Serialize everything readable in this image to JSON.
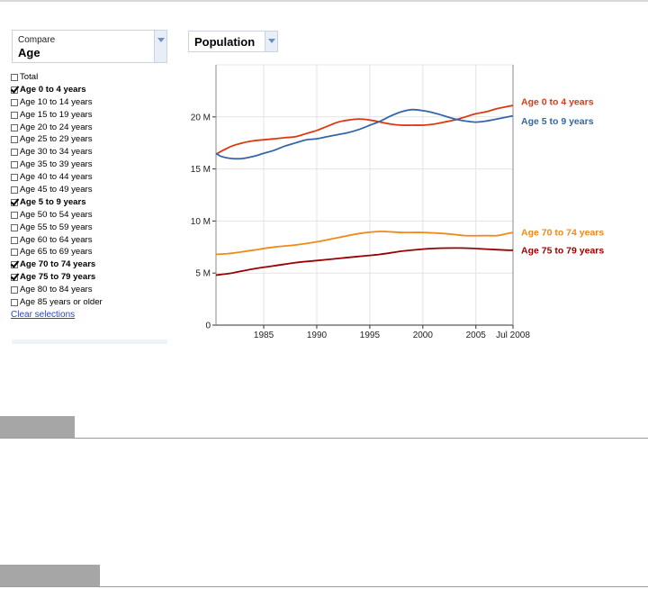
{
  "compare": {
    "caption": "Compare",
    "selected": "Age"
  },
  "metric": {
    "selected": "Population"
  },
  "age_groups": [
    {
      "label": "Total",
      "checked": false
    },
    {
      "label": "Age 0 to 4 years",
      "checked": true
    },
    {
      "label": "Age 10 to 14 years",
      "checked": false
    },
    {
      "label": "Age 15 to 19 years",
      "checked": false
    },
    {
      "label": "Age 20 to 24 years",
      "checked": false
    },
    {
      "label": "Age 25 to 29 years",
      "checked": false
    },
    {
      "label": "Age 30 to 34 years",
      "checked": false
    },
    {
      "label": "Age 35 to 39 years",
      "checked": false
    },
    {
      "label": "Age 40 to 44 years",
      "checked": false
    },
    {
      "label": "Age 45 to 49 years",
      "checked": false
    },
    {
      "label": "Age 5 to 9 years",
      "checked": true
    },
    {
      "label": "Age 50 to 54 years",
      "checked": false
    },
    {
      "label": "Age 55 to 59 years",
      "checked": false
    },
    {
      "label": "Age 60 to 64 years",
      "checked": false
    },
    {
      "label": "Age 65 to 69 years",
      "checked": false
    },
    {
      "label": "Age 70 to 74 years",
      "checked": true
    },
    {
      "label": "Age 75 to 79 years",
      "checked": true
    },
    {
      "label": "Age 80 to 84 years",
      "checked": false
    },
    {
      "label": "Age 85 years or older",
      "checked": false
    }
  ],
  "clear_link": "Clear selections",
  "colors": {
    "accent_link": "#2a44c8",
    "grid": "#e3e3e3",
    "axis": "#333333"
  },
  "chart_data": {
    "type": "line",
    "xlim": [
      1980.5,
      2008.5
    ],
    "ylim": [
      0,
      25
    ],
    "x_ticks": [
      {
        "value": 1985,
        "label": "1985"
      },
      {
        "value": 1990,
        "label": "1990"
      },
      {
        "value": 1995,
        "label": "1995"
      },
      {
        "value": 2000,
        "label": "2000"
      },
      {
        "value": 2005,
        "label": "2005"
      },
      {
        "value": 2008.5,
        "label": "Jul 2008"
      }
    ],
    "y_ticks": [
      {
        "value": 0,
        "label": "0"
      },
      {
        "value": 5,
        "label": "5 M"
      },
      {
        "value": 10,
        "label": "10 M"
      },
      {
        "value": 15,
        "label": "15 M"
      },
      {
        "value": 20,
        "label": "20 M"
      }
    ],
    "grid": true,
    "legend": "right",
    "series": [
      {
        "name": "Age 0 to 4 years",
        "color": "#dc3912",
        "points": [
          [
            1980.5,
            16.4
          ],
          [
            1981,
            16.7
          ],
          [
            1982,
            17.2
          ],
          [
            1983,
            17.5
          ],
          [
            1984,
            17.7
          ],
          [
            1985,
            17.8
          ],
          [
            1986,
            17.9
          ],
          [
            1987,
            18.0
          ],
          [
            1988,
            18.1
          ],
          [
            1989,
            18.4
          ],
          [
            1990,
            18.7
          ],
          [
            1991,
            19.1
          ],
          [
            1992,
            19.5
          ],
          [
            1993,
            19.7
          ],
          [
            1994,
            19.8
          ],
          [
            1995,
            19.7
          ],
          [
            1996,
            19.5
          ],
          [
            1997,
            19.3
          ],
          [
            1998,
            19.2
          ],
          [
            1999,
            19.2
          ],
          [
            2000,
            19.2
          ],
          [
            2001,
            19.3
          ],
          [
            2002,
            19.5
          ],
          [
            2003,
            19.7
          ],
          [
            2004,
            20.0
          ],
          [
            2005,
            20.3
          ],
          [
            2006,
            20.5
          ],
          [
            2007,
            20.8
          ],
          [
            2008,
            21.0
          ],
          [
            2008.5,
            21.1
          ]
        ]
      },
      {
        "name": "Age 5 to 9 years",
        "color": "#3366a8",
        "points": [
          [
            1980.5,
            16.5
          ],
          [
            1981,
            16.2
          ],
          [
            1982,
            16.0
          ],
          [
            1983,
            16.0
          ],
          [
            1984,
            16.2
          ],
          [
            1985,
            16.5
          ],
          [
            1986,
            16.8
          ],
          [
            1987,
            17.2
          ],
          [
            1988,
            17.5
          ],
          [
            1989,
            17.8
          ],
          [
            1990,
            17.9
          ],
          [
            1991,
            18.1
          ],
          [
            1992,
            18.3
          ],
          [
            1993,
            18.5
          ],
          [
            1994,
            18.8
          ],
          [
            1995,
            19.2
          ],
          [
            1996,
            19.6
          ],
          [
            1997,
            20.1
          ],
          [
            1998,
            20.5
          ],
          [
            1999,
            20.7
          ],
          [
            2000,
            20.6
          ],
          [
            2001,
            20.4
          ],
          [
            2002,
            20.1
          ],
          [
            2003,
            19.8
          ],
          [
            2004,
            19.6
          ],
          [
            2005,
            19.5
          ],
          [
            2006,
            19.6
          ],
          [
            2007,
            19.8
          ],
          [
            2008,
            20.0
          ],
          [
            2008.5,
            20.1
          ]
        ]
      },
      {
        "name": "Age 70 to 74 years",
        "color": "#f08a16",
        "points": [
          [
            1980.5,
            6.8
          ],
          [
            1982,
            6.9
          ],
          [
            1984,
            7.2
          ],
          [
            1986,
            7.5
          ],
          [
            1988,
            7.7
          ],
          [
            1990,
            8.0
          ],
          [
            1992,
            8.4
          ],
          [
            1994,
            8.8
          ],
          [
            1996,
            9.0
          ],
          [
            1998,
            8.9
          ],
          [
            2000,
            8.9
          ],
          [
            2002,
            8.8
          ],
          [
            2004,
            8.6
          ],
          [
            2006,
            8.6
          ],
          [
            2007,
            8.6
          ],
          [
            2008,
            8.8
          ],
          [
            2008.5,
            8.9
          ]
        ]
      },
      {
        "name": "Age 75 to 79 years",
        "color": "#990000",
        "points": [
          [
            1980.5,
            4.8
          ],
          [
            1982,
            5.0
          ],
          [
            1984,
            5.4
          ],
          [
            1986,
            5.7
          ],
          [
            1988,
            6.0
          ],
          [
            1990,
            6.2
          ],
          [
            1992,
            6.4
          ],
          [
            1994,
            6.6
          ],
          [
            1996,
            6.8
          ],
          [
            1998,
            7.1
          ],
          [
            2000,
            7.3
          ],
          [
            2002,
            7.4
          ],
          [
            2004,
            7.4
          ],
          [
            2006,
            7.3
          ],
          [
            2008,
            7.2
          ],
          [
            2008.5,
            7.2
          ]
        ]
      }
    ]
  }
}
